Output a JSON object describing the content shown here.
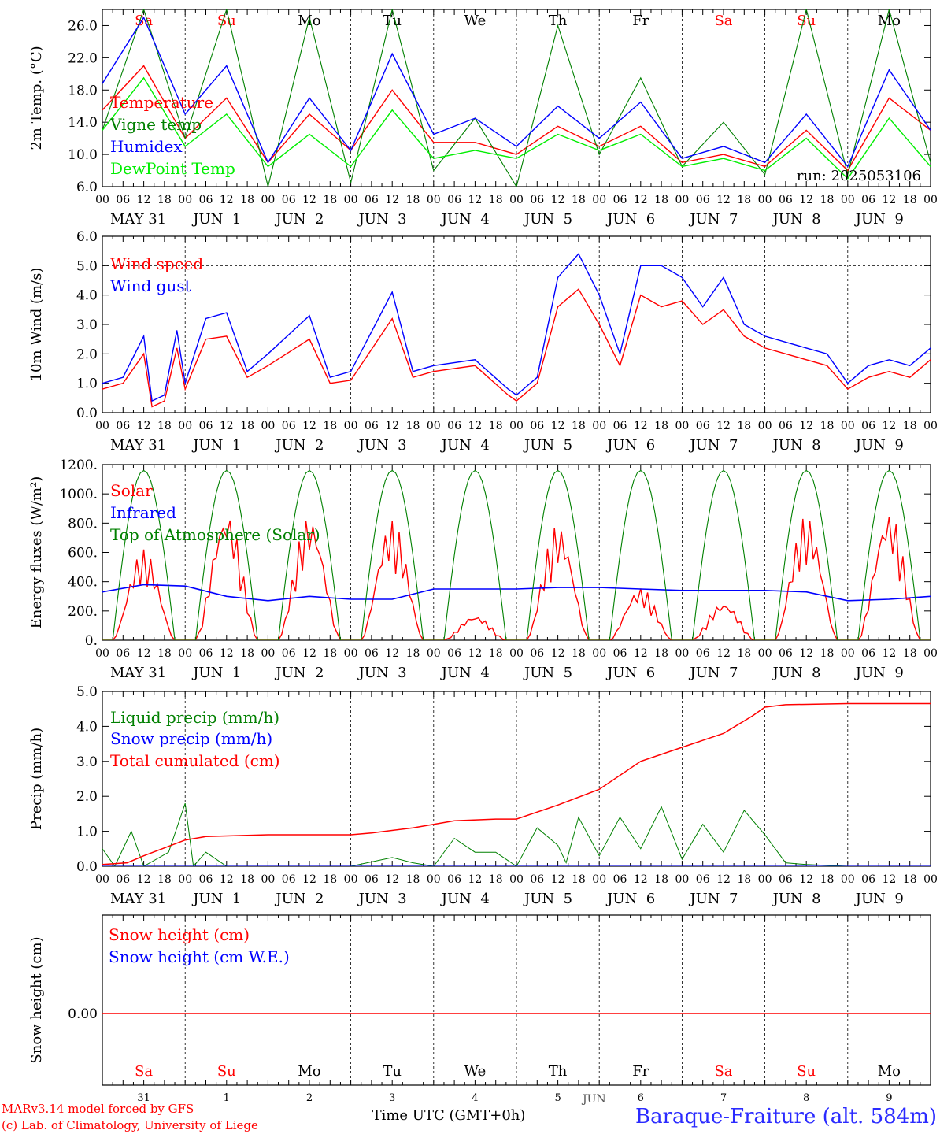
{
  "colors": {
    "red": "#ff0000",
    "blue": "#0000ff",
    "green": "#008000",
    "lime": "#00ee00",
    "gray": "#666666"
  },
  "weekdays": [
    {
      "label": "Sa",
      "weekend": true
    },
    {
      "label": "Su",
      "weekend": true
    },
    {
      "label": "Mo",
      "weekend": false
    },
    {
      "label": "Tu",
      "weekend": false
    },
    {
      "label": "We",
      "weekend": false
    },
    {
      "label": "Th",
      "weekend": false
    },
    {
      "label": "Fr",
      "weekend": false
    },
    {
      "label": "Sa",
      "weekend": true
    },
    {
      "label": "Su",
      "weekend": true
    },
    {
      "label": "Mo",
      "weekend": false
    }
  ],
  "hour_ticks": [
    "00",
    "06",
    "12",
    "18"
  ],
  "date_labels": [
    "MAY 31",
    "JUN  1",
    "JUN  2",
    "JUN  3",
    "JUN  4",
    "JUN  5",
    "JUN  6",
    "JUN  7",
    "JUN  8",
    "JUN  9"
  ],
  "day_numbers": [
    "31",
    "1",
    "2",
    "3",
    "4",
    "5",
    "6",
    "7",
    "8",
    "9"
  ],
  "footer": {
    "credit1": "MARv3.14 model forced by GFS",
    "credit2": "(c) Lab. of Climatology, University of Liege",
    "xlabel": "Time UTC (GMT+0h)",
    "overlap": "JUN",
    "station": "Baraque-Fraiture (alt. 584m)"
  },
  "chart_data": [
    {
      "type": "line",
      "ylabel": "2m Temp. (°C)",
      "ylim": [
        6,
        28
      ],
      "yticks": [
        "6.0",
        "10.0",
        "14.0",
        "18.0",
        "22.0",
        "26.0"
      ],
      "annotation": "run: 2025053106",
      "x_days": [
        0,
        0.5,
        1,
        1.5,
        2,
        2.5,
        3,
        3.5,
        4,
        4.5,
        5,
        5.5,
        6,
        6.5,
        7,
        7.5,
        8,
        8.5,
        9,
        9.5,
        10
      ],
      "series": [
        {
          "name": "Temperature",
          "color": "red",
          "values": [
            15.5,
            21,
            12,
            17,
            9,
            15,
            10.5,
            18,
            11.5,
            11.5,
            10,
            13.5,
            11,
            13.5,
            9,
            10,
            8.5,
            13,
            8,
            17,
            13
          ]
        },
        {
          "name": "Vigne temp",
          "color": "green",
          "values": [
            13,
            28,
            12,
            28,
            6,
            27,
            6.5,
            28,
            8,
            14.5,
            6,
            26,
            10,
            19.5,
            8.5,
            14,
            7.5,
            28,
            7.5,
            28,
            9
          ]
        },
        {
          "name": "Humidex",
          "color": "blue",
          "values": [
            18.8,
            27,
            15,
            21,
            9,
            17,
            10.5,
            22.5,
            12.5,
            14.5,
            11,
            16,
            12,
            16.5,
            9.5,
            11,
            9,
            15,
            8.5,
            20.5,
            13
          ]
        },
        {
          "name": "DewPoint Temp",
          "color": "lime",
          "values": [
            13,
            19.5,
            11,
            15,
            8.5,
            12.5,
            8.5,
            15.5,
            9.5,
            10.5,
            9.5,
            12.5,
            10.5,
            12.5,
            8.5,
            9.5,
            8,
            12,
            7,
            14.5,
            8.5
          ]
        }
      ]
    },
    {
      "type": "line",
      "ylabel": "10m Wind (m/s)",
      "ylim": [
        0,
        6
      ],
      "yticks": [
        "0.0",
        "1.0",
        "2.0",
        "3.0",
        "4.0",
        "5.0",
        "6.0"
      ],
      "refline": 5,
      "x_days": [
        0,
        0.25,
        0.5,
        0.6,
        0.75,
        0.9,
        1,
        1.25,
        1.5,
        1.75,
        2,
        2.5,
        2.75,
        3,
        3.5,
        3.75,
        4,
        4.5,
        4.9,
        5,
        5.25,
        5.5,
        5.75,
        6,
        6.25,
        6.5,
        6.75,
        7,
        7.25,
        7.5,
        7.75,
        8,
        8.25,
        8.5,
        8.75,
        9,
        9.25,
        9.5,
        9.75,
        10
      ],
      "series": [
        {
          "name": "Wind speed",
          "color": "red",
          "values": [
            0.8,
            1.0,
            2.0,
            0.2,
            0.4,
            2.2,
            0.8,
            2.5,
            2.6,
            1.2,
            1.6,
            2.5,
            1.0,
            1.1,
            3.2,
            1.2,
            1.4,
            1.6,
            0.6,
            0.4,
            1.0,
            3.6,
            4.2,
            3.0,
            1.6,
            4.0,
            3.6,
            3.8,
            3.0,
            3.5,
            2.6,
            2.2,
            2.0,
            1.8,
            1.6,
            0.8,
            1.2,
            1.4,
            1.2,
            1.8
          ]
        },
        {
          "name": "Wind gust",
          "color": "blue",
          "values": [
            1.0,
            1.2,
            2.6,
            0.4,
            0.6,
            2.8,
            1.0,
            3.2,
            3.4,
            1.4,
            2.0,
            3.3,
            1.2,
            1.4,
            4.1,
            1.4,
            1.6,
            1.8,
            0.8,
            0.6,
            1.2,
            4.6,
            5.4,
            4.0,
            2.0,
            5.0,
            5.0,
            4.6,
            3.6,
            4.6,
            3.0,
            2.6,
            2.4,
            2.2,
            2.0,
            1.0,
            1.6,
            1.8,
            1.6,
            2.2
          ]
        }
      ]
    },
    {
      "type": "line",
      "ylabel": "Energy fluxes (W/m²)",
      "ylim": [
        0,
        1200
      ],
      "yticks": [
        "0.",
        "200.",
        "400.",
        "600.",
        "800.",
        "1000.",
        "1200."
      ],
      "day_peaks": {
        "Solar": [
          620,
          880,
          850,
          820,
          170,
          790,
          360,
          260,
          850,
          880
        ],
        "Top of Atmosphere (Solar)": [
          1160,
          1160,
          1160,
          1160,
          1160,
          1160,
          1160,
          1160,
          1160,
          1160
        ]
      },
      "series": [
        {
          "name": "Solar",
          "color": "red"
        },
        {
          "name": "Infrared",
          "color": "blue",
          "x_days": [
            0,
            0.5,
            1,
            1.5,
            2,
            2.5,
            3,
            3.5,
            4,
            4.5,
            5,
            5.5,
            6,
            6.5,
            7,
            7.5,
            8,
            8.5,
            9,
            9.5,
            10
          ],
          "values": [
            330,
            380,
            370,
            300,
            270,
            300,
            280,
            280,
            350,
            350,
            350,
            360,
            360,
            350,
            340,
            340,
            340,
            330,
            270,
            280,
            300
          ]
        },
        {
          "name": "Top of Atmosphere (Solar)",
          "color": "green"
        }
      ]
    },
    {
      "type": "line",
      "ylabel": "Precip (mm/h)",
      "ylim": [
        0,
        5
      ],
      "yticks": [
        "0.0",
        "1.0",
        "2.0",
        "3.0",
        "4.0",
        "5.0"
      ],
      "series": [
        {
          "name": "Liquid precip (mm/h)",
          "color": "green",
          "x_days": [
            0,
            0.15,
            0.35,
            0.5,
            0.8,
            1,
            1.1,
            1.25,
            1.5,
            2,
            2.5,
            3,
            3.5,
            3.75,
            4,
            4.25,
            4.5,
            4.75,
            5,
            5.25,
            5.5,
            5.6,
            5.75,
            6,
            6.25,
            6.5,
            6.75,
            7,
            7.25,
            7.5,
            7.75,
            8,
            8.25,
            8.5,
            9,
            9.5,
            10
          ],
          "values": [
            0.5,
            0,
            1.0,
            0,
            0.4,
            1.8,
            0,
            0.4,
            0,
            0,
            0,
            0,
            0.25,
            0.1,
            0,
            0.8,
            0.4,
            0.4,
            0,
            1.1,
            0.6,
            0.1,
            1.4,
            0.3,
            1.4,
            0.5,
            1.7,
            0.2,
            1.2,
            0.4,
            1.6,
            0.9,
            0.1,
            0.05,
            0,
            0,
            0
          ]
        },
        {
          "name": "Snow precip (mm/h)",
          "color": "blue",
          "x_days": [
            0,
            10
          ],
          "values": [
            0,
            0
          ]
        },
        {
          "name": "Total cumulated (cm)",
          "color": "red",
          "x_days": [
            0,
            0.3,
            0.5,
            1,
            1.25,
            2,
            3,
            3.25,
            3.75,
            4.25,
            4.75,
            5,
            5.5,
            6,
            6.5,
            7,
            7.5,
            7.85,
            8,
            8.25,
            9,
            10
          ],
          "values": [
            0.05,
            0.1,
            0.3,
            0.75,
            0.85,
            0.9,
            0.9,
            0.95,
            1.1,
            1.3,
            1.35,
            1.35,
            1.75,
            2.2,
            3.0,
            3.4,
            3.8,
            4.3,
            4.55,
            4.62,
            4.65,
            4.65
          ]
        }
      ]
    },
    {
      "type": "line",
      "ylabel": "Snow height (cm)",
      "yticks": [
        "0.00"
      ],
      "series": [
        {
          "name": "Snow height (cm)",
          "color": "red",
          "x_days": [
            0,
            10
          ],
          "values": [
            0,
            0
          ]
        },
        {
          "name": "Snow height (cm W.E.)",
          "color": "blue"
        }
      ]
    }
  ]
}
